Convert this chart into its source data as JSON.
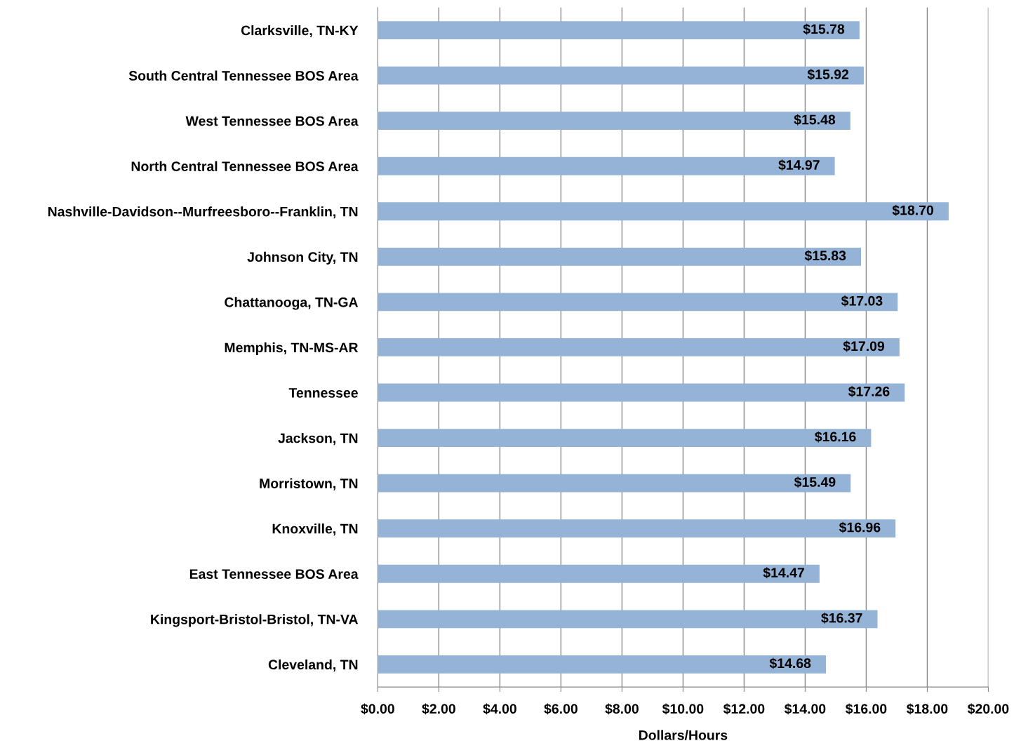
{
  "chart_data": {
    "type": "bar",
    "orientation": "horizontal",
    "xlabel": "Dollars/Hours",
    "categories": [
      "Clarksville, TN-KY",
      "South Central Tennessee BOS Area",
      "West Tennessee BOS Area",
      "North Central Tennessee BOS Area",
      "Nashville-Davidson--Murfreesboro--Franklin, TN",
      "Johnson City, TN",
      "Chattanooga, TN-GA",
      "Memphis, TN-MS-AR",
      "Tennessee",
      "Jackson, TN",
      "Morristown, TN",
      "Knoxville, TN",
      "East Tennessee BOS Area",
      "Kingsport-Bristol-Bristol, TN-VA",
      "Cleveland, TN"
    ],
    "values": [
      15.78,
      15.92,
      15.48,
      14.97,
      18.7,
      15.83,
      17.03,
      17.09,
      17.26,
      16.16,
      15.49,
      16.96,
      14.47,
      16.37,
      14.68
    ],
    "value_labels": [
      "$15.78",
      "$15.92",
      "$15.48",
      "$14.97",
      "$18.70",
      "$15.83",
      "$17.03",
      "$17.09",
      "$17.26",
      "$16.16",
      "$15.49",
      "$16.96",
      "$14.47",
      "$16.37",
      "$14.68"
    ],
    "color": "#95b3d7",
    "xlim": [
      0,
      20
    ],
    "xticks": [
      {
        "value": 0,
        "label": "$0.00"
      },
      {
        "value": 2,
        "label": "$2.00"
      },
      {
        "value": 4,
        "label": "$4.00"
      },
      {
        "value": 6,
        "label": "$6.00"
      },
      {
        "value": 8,
        "label": "$8.00"
      },
      {
        "value": 10,
        "label": "$10.00"
      },
      {
        "value": 12,
        "label": "$12.00"
      },
      {
        "value": 14,
        "label": "$14.00"
      },
      {
        "value": 16,
        "label": "$16.00"
      },
      {
        "value": 18,
        "label": "$18.00"
      },
      {
        "value": 20,
        "label": "$20.00"
      }
    ],
    "grid": "x",
    "legend": false
  }
}
